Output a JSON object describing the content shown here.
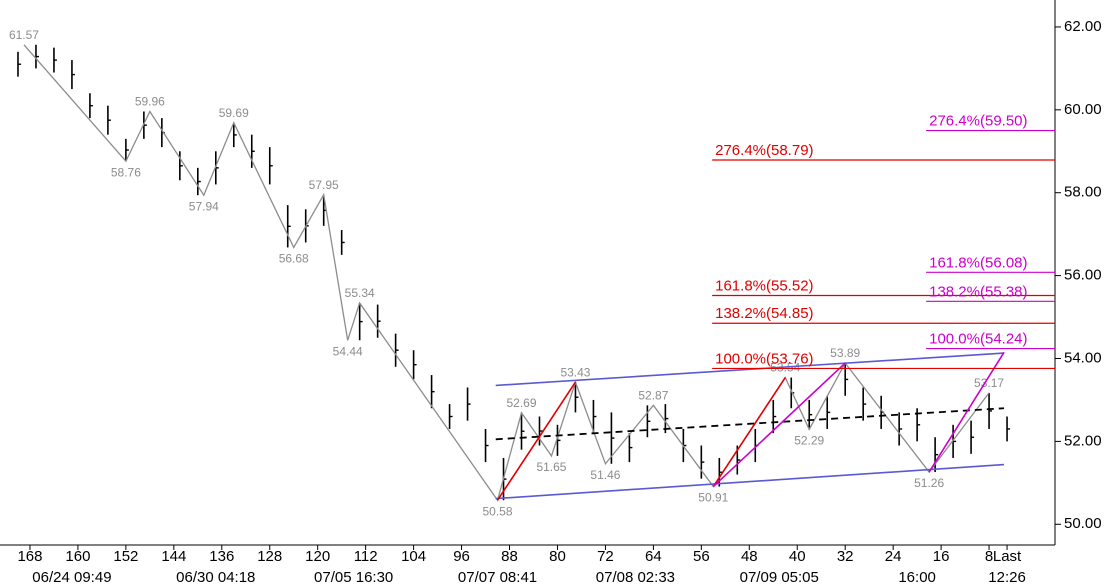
{
  "chart_data": {
    "type": "ohlc",
    "xlim": [
      173,
      -3
    ],
    "ylim": [
      49.5,
      62.65
    ],
    "yticks": [
      {
        "value": 50,
        "label": "50.00"
      },
      {
        "value": 52,
        "label": "52.00"
      },
      {
        "value": 54,
        "label": "54.00"
      },
      {
        "value": 56,
        "label": "56.00"
      },
      {
        "value": 58,
        "label": "58.00"
      },
      {
        "value": 60,
        "label": "60.00"
      },
      {
        "value": 62,
        "label": "62.00"
      }
    ],
    "xticks": [
      168,
      160,
      152,
      144,
      136,
      128,
      120,
      112,
      104,
      96,
      88,
      80,
      72,
      64,
      56,
      48,
      40,
      32,
      24,
      16,
      8,
      {
        "value": 5,
        "label": "Last"
      }
    ],
    "date_ticks": [
      {
        "value": 161,
        "label": "06/24 09:49"
      },
      {
        "value": 137,
        "label": "06/30 04:18"
      },
      {
        "value": 114,
        "label": "07/05 16:30"
      },
      {
        "value": 90,
        "label": "07/07 08:41"
      },
      {
        "value": 67,
        "label": "07/08 02:33"
      },
      {
        "value": 43,
        "label": "07/09 05:05"
      },
      {
        "value": 20,
        "label": "16:00"
      },
      {
        "value": 5,
        "label": "12:26"
      }
    ],
    "bars": {
      "color": "#000000",
      "x": [
        170,
        167,
        164,
        161,
        158,
        155,
        152,
        149,
        146,
        143,
        140,
        137,
        134,
        131,
        128,
        125,
        122,
        119,
        116,
        113,
        110,
        107,
        104,
        101,
        98,
        95,
        92,
        89,
        86,
        83,
        80,
        77,
        74,
        71,
        68,
        65,
        62,
        59,
        56,
        53,
        50,
        47,
        44,
        41,
        38,
        35,
        32,
        29,
        26,
        23,
        20,
        17,
        14,
        11,
        8,
        5
      ],
      "high": [
        61.4,
        61.57,
        61.5,
        61.2,
        60.4,
        60.1,
        59.3,
        59.96,
        59.8,
        59.0,
        58.6,
        59.0,
        59.69,
        59.4,
        59.1,
        57.7,
        57.6,
        57.95,
        57.1,
        55.34,
        55.3,
        54.6,
        54.2,
        53.6,
        52.9,
        53.3,
        52.3,
        51.6,
        52.69,
        52.6,
        52.4,
        53.43,
        53.0,
        52.7,
        52.2,
        52.87,
        52.9,
        52.3,
        51.9,
        51.6,
        51.9,
        52.3,
        53.0,
        53.54,
        53.0,
        53.1,
        53.89,
        53.3,
        53.1,
        52.7,
        52.8,
        52.1,
        52.4,
        52.5,
        53.17,
        52.6
      ],
      "low": [
        60.8,
        61.0,
        60.9,
        60.5,
        59.8,
        59.4,
        58.76,
        59.3,
        59.1,
        58.3,
        57.94,
        58.2,
        59.1,
        58.6,
        58.2,
        56.68,
        56.8,
        57.2,
        56.5,
        54.44,
        54.5,
        53.8,
        53.5,
        52.8,
        52.3,
        52.5,
        51.5,
        50.58,
        51.8,
        51.9,
        51.65,
        52.7,
        52.2,
        51.46,
        51.5,
        52.1,
        52.2,
        51.5,
        51.1,
        50.91,
        51.2,
        51.5,
        52.2,
        52.8,
        52.29,
        52.3,
        53.1,
        52.5,
        52.3,
        51.9,
        52.0,
        51.26,
        51.6,
        51.7,
        52.3,
        52.0
      ]
    },
    "swings": {
      "color": "#8c8c8c",
      "x": [
        169,
        152,
        148,
        139,
        134,
        124,
        119,
        115,
        113,
        90,
        86,
        81,
        77,
        72,
        64,
        54,
        42,
        38,
        32,
        18,
        8
      ],
      "values": [
        61.57,
        58.76,
        59.96,
        57.94,
        59.69,
        56.68,
        57.95,
        54.44,
        55.34,
        50.58,
        52.69,
        51.65,
        53.43,
        51.46,
        52.87,
        50.91,
        53.54,
        52.29,
        53.89,
        51.26,
        53.17
      ]
    },
    "trend_lines": [
      {
        "color": "#e00000",
        "x": [
          90,
          77
        ],
        "values": [
          50.58,
          53.43
        ]
      },
      {
        "color": "#e00000",
        "x": [
          54,
          42
        ],
        "values": [
          50.91,
          53.54
        ]
      },
      {
        "color": "#cc00cc",
        "x": [
          54,
          32
        ],
        "values": [
          50.91,
          53.89
        ]
      },
      {
        "color": "#cc00cc",
        "x": [
          18,
          5.5
        ],
        "values": [
          51.26,
          54.15
        ]
      }
    ],
    "channel_lines": [
      {
        "color": "#5a5ad2",
        "dashed": false,
        "x": [
          90.3,
          5.5
        ],
        "values": [
          53.35,
          54.13
        ]
      },
      {
        "color": "#5a5ad2",
        "dashed": false,
        "x": [
          90.3,
          5.5
        ],
        "values": [
          50.62,
          51.44
        ]
      },
      {
        "color": "#000000",
        "dashed": true,
        "x": [
          90.3,
          5.5
        ],
        "values": [
          52.05,
          52.8
        ]
      }
    ],
    "fib_levels": [
      {
        "label": "276.4%(58.79)",
        "value": 58.79,
        "color": "#e00000",
        "start": 54.2
      },
      {
        "label": "161.8%(55.52)",
        "value": 55.52,
        "color": "#e00000",
        "start": 54.2
      },
      {
        "label": "138.2%(54.85)",
        "value": 54.85,
        "color": "#e00000",
        "start": 54.2
      },
      {
        "label": "100.0%(53.76)",
        "value": 53.76,
        "color": "#e00000",
        "start": 54.2
      },
      {
        "label": "276.4%(59.50)",
        "value": 59.5,
        "color": "#cc00cc",
        "start": 18.5
      },
      {
        "label": "161.8%(56.08)",
        "value": 56.08,
        "color": "#cc00cc",
        "start": 18.5
      },
      {
        "label": "138.2%(55.38)",
        "value": 55.38,
        "color": "#cc00cc",
        "start": 18.5
      },
      {
        "label": "100.0%(54.24)",
        "value": 54.24,
        "color": "#cc00cc",
        "start": 18.5
      }
    ]
  }
}
